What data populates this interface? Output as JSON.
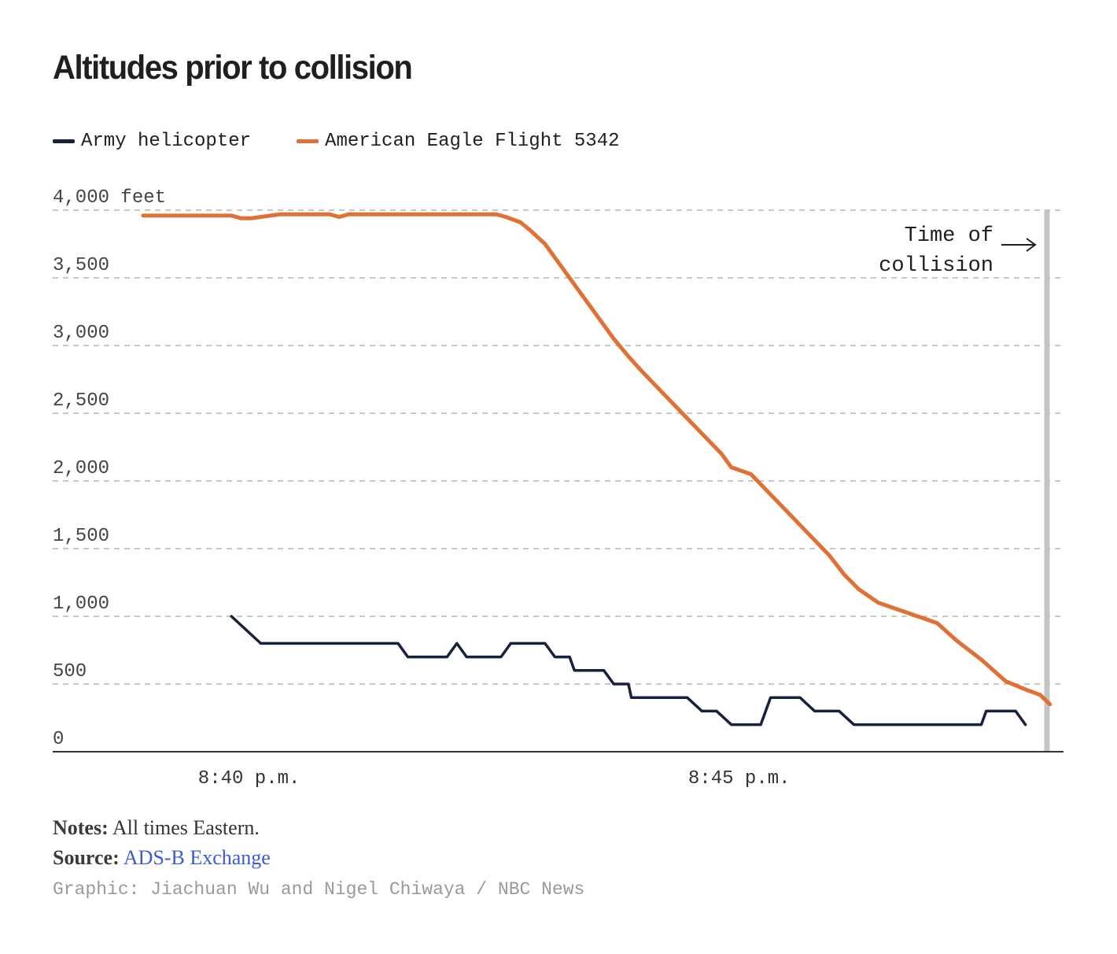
{
  "chart_data": {
    "type": "line",
    "title": "Altitudes prior to collision",
    "ylabel_unit": "feet",
    "ylim": [
      0,
      4000
    ],
    "y_ticks": [
      {
        "value": 0,
        "label": "0"
      },
      {
        "value": 500,
        "label": "500"
      },
      {
        "value": 1000,
        "label": "1,000"
      },
      {
        "value": 1500,
        "label": "1,500"
      },
      {
        "value": 2000,
        "label": "2,000"
      },
      {
        "value": 2500,
        "label": "2,500"
      },
      {
        "value": 3000,
        "label": "3,000"
      },
      {
        "value": 3500,
        "label": "3,500"
      },
      {
        "value": 4000,
        "label": "4,000"
      }
    ],
    "x_unit": "minutes after 8:00 p.m.",
    "xlim": [
      38.2,
      48.4
    ],
    "x_ticks": [
      {
        "value": 40,
        "label": "8:40 p.m."
      },
      {
        "value": 45,
        "label": "8:45 p.m."
      }
    ],
    "annotation": {
      "label_line1": "Time of",
      "label_line2": "collision",
      "x": 48.0
    },
    "series": [
      {
        "name": "Army helicopter",
        "color": "#16213b",
        "points": [
          [
            39.9,
            1000
          ],
          [
            40.2,
            800
          ],
          [
            41.6,
            800
          ],
          [
            41.7,
            700
          ],
          [
            42.1,
            700
          ],
          [
            42.2,
            800
          ],
          [
            42.3,
            700
          ],
          [
            42.65,
            700
          ],
          [
            42.75,
            800
          ],
          [
            43.1,
            800
          ],
          [
            43.2,
            700
          ],
          [
            43.35,
            700
          ],
          [
            43.4,
            600
          ],
          [
            43.7,
            600
          ],
          [
            43.8,
            500
          ],
          [
            43.95,
            500
          ],
          [
            43.98,
            400
          ],
          [
            44.55,
            400
          ],
          [
            44.7,
            300
          ],
          [
            44.85,
            300
          ],
          [
            45.0,
            200
          ],
          [
            45.3,
            200
          ],
          [
            45.4,
            400
          ],
          [
            45.7,
            400
          ],
          [
            45.85,
            300
          ],
          [
            46.1,
            300
          ],
          [
            46.25,
            200
          ],
          [
            47.55,
            200
          ],
          [
            47.6,
            300
          ],
          [
            47.9,
            300
          ],
          [
            48.0,
            200
          ]
        ]
      },
      {
        "name": "American Eagle Flight 5342",
        "color": "#e07034",
        "points": [
          [
            39.0,
            3960
          ],
          [
            39.9,
            3960
          ],
          [
            40.0,
            3940
          ],
          [
            40.1,
            3940
          ],
          [
            40.3,
            3960
          ],
          [
            40.4,
            3970
          ],
          [
            40.9,
            3970
          ],
          [
            41.0,
            3950
          ],
          [
            41.1,
            3970
          ],
          [
            42.6,
            3970
          ],
          [
            42.7,
            3950
          ],
          [
            42.85,
            3910
          ],
          [
            42.95,
            3850
          ],
          [
            43.1,
            3750
          ],
          [
            43.25,
            3600
          ],
          [
            43.4,
            3450
          ],
          [
            43.6,
            3250
          ],
          [
            43.8,
            3050
          ],
          [
            43.95,
            2920
          ],
          [
            44.1,
            2800
          ],
          [
            44.3,
            2650
          ],
          [
            44.5,
            2500
          ],
          [
            44.7,
            2350
          ],
          [
            44.9,
            2200
          ],
          [
            45.0,
            2100
          ],
          [
            45.2,
            2050
          ],
          [
            45.4,
            1900
          ],
          [
            45.6,
            1750
          ],
          [
            45.8,
            1600
          ],
          [
            46.0,
            1450
          ],
          [
            46.15,
            1310
          ],
          [
            46.3,
            1200
          ],
          [
            46.5,
            1100
          ],
          [
            46.7,
            1050
          ],
          [
            46.9,
            1000
          ],
          [
            47.1,
            950
          ],
          [
            47.3,
            820
          ],
          [
            47.55,
            680
          ],
          [
            47.8,
            520
          ],
          [
            48.0,
            460
          ],
          [
            48.15,
            420
          ],
          [
            48.25,
            350
          ]
        ]
      }
    ]
  },
  "notes": {
    "label": "Notes:",
    "text": "All times Eastern."
  },
  "source": {
    "label": "Source:",
    "link_text": "ADS-B Exchange"
  },
  "credit": "Graphic: Jiachuan Wu and Nigel Chiwaya / NBC News",
  "colors": {
    "grid": "#c8c8c8",
    "collision_line": "#c4c4c4",
    "text": "#1f1f1f"
  }
}
